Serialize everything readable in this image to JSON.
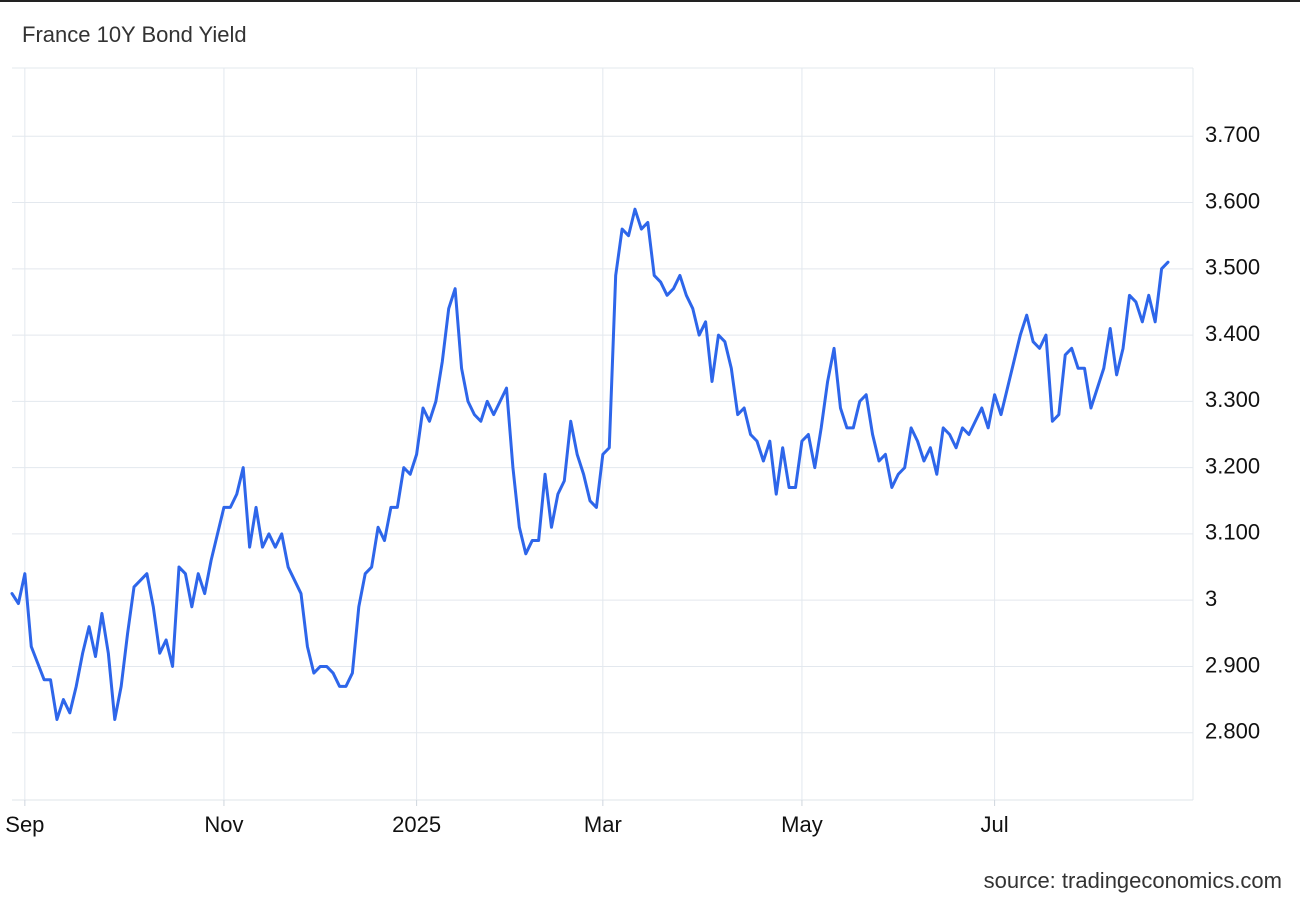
{
  "chart_data": {
    "type": "line",
    "title": "France 10Y Bond Yield",
    "source": "source: tradingeconomics.com",
    "color": "#2e66ea",
    "grid": true,
    "ylim": [
      2.7,
      3.8
    ],
    "yticks": [
      {
        "value": 2.8,
        "label": "2.800"
      },
      {
        "value": 2.9,
        "label": "2.900"
      },
      3,
      {
        "value": 3.1,
        "label": "3.100"
      },
      {
        "value": 3.2,
        "label": "3.200"
      },
      {
        "value": 3.3,
        "label": "3.300"
      },
      {
        "value": 3.4,
        "label": "3.400"
      },
      {
        "value": 3.5,
        "label": "3.500"
      },
      {
        "value": 3.6,
        "label": "3.600"
      },
      {
        "value": 3.7,
        "label": "3.700"
      }
    ],
    "categories": [
      null,
      null,
      "Sep",
      null,
      null,
      null,
      null,
      null,
      null,
      null,
      null,
      null,
      null,
      null,
      null,
      null,
      null,
      null,
      null,
      null,
      null,
      null,
      null,
      null,
      null,
      null,
      null,
      null,
      null,
      null,
      null,
      null,
      null,
      "Nov",
      null,
      null,
      null,
      null,
      null,
      null,
      null,
      null,
      null,
      null,
      null,
      null,
      null,
      null,
      null,
      null,
      null,
      null,
      null,
      null,
      null,
      null,
      null,
      null,
      null,
      null,
      null,
      null,
      null,
      "2025",
      null,
      null,
      null,
      null,
      null,
      null,
      null,
      null,
      null,
      null,
      null,
      null,
      null,
      null,
      null,
      null,
      null,
      null,
      null,
      null,
      null,
      null,
      null,
      null,
      null,
      null,
      null,
      null,
      "Mar",
      null,
      null,
      null,
      null,
      null,
      null,
      null,
      null,
      null,
      null,
      null,
      null,
      null,
      null,
      null,
      null,
      null,
      null,
      null,
      null,
      null,
      null,
      null,
      null,
      null,
      null,
      null,
      null,
      null,
      null,
      "May",
      null,
      null,
      null,
      null,
      null,
      null,
      null,
      null,
      null,
      null,
      null,
      null,
      null,
      null,
      null,
      null,
      null,
      null,
      null,
      null,
      null,
      null,
      null,
      null,
      null,
      null,
      null,
      null,
      null,
      "Jul",
      null,
      null,
      null,
      null,
      null,
      null,
      null,
      null,
      null,
      null,
      null,
      null,
      null,
      null,
      null,
      null,
      null,
      null,
      null,
      null,
      null,
      null,
      null,
      null,
      null,
      null,
      null
    ],
    "values": [
      3.01,
      2.995,
      3.04,
      2.93,
      2.905,
      2.88,
      2.88,
      2.82,
      2.85,
      2.83,
      2.87,
      2.92,
      2.96,
      2.915,
      2.98,
      2.92,
      2.82,
      2.87,
      2.95,
      3.02,
      3.03,
      3.04,
      2.99,
      2.92,
      2.94,
      2.9,
      3.05,
      3.04,
      2.99,
      3.04,
      3.01,
      3.06,
      3.1,
      3.14,
      3.14,
      3.16,
      3.2,
      3.08,
      3.14,
      3.08,
      3.1,
      3.08,
      3.1,
      3.05,
      3.03,
      3.01,
      2.93,
      2.89,
      2.9,
      2.9,
      2.89,
      2.87,
      2.87,
      2.89,
      2.99,
      3.04,
      3.05,
      3.11,
      3.09,
      3.14,
      3.14,
      3.2,
      3.19,
      3.22,
      3.29,
      3.27,
      3.3,
      3.36,
      3.44,
      3.47,
      3.35,
      3.3,
      3.28,
      3.27,
      3.3,
      3.28,
      3.3,
      3.32,
      3.2,
      3.11,
      3.07,
      3.09,
      3.09,
      3.19,
      3.11,
      3.16,
      3.18,
      3.27,
      3.22,
      3.19,
      3.15,
      3.14,
      3.22,
      3.23,
      3.49,
      3.56,
      3.55,
      3.59,
      3.56,
      3.57,
      3.49,
      3.48,
      3.46,
      3.47,
      3.49,
      3.46,
      3.44,
      3.4,
      3.42,
      3.33,
      3.4,
      3.39,
      3.35,
      3.28,
      3.29,
      3.25,
      3.24,
      3.21,
      3.24,
      3.16,
      3.23,
      3.17,
      3.17,
      3.24,
      3.25,
      3.2,
      3.26,
      3.33,
      3.38,
      3.29,
      3.26,
      3.26,
      3.3,
      3.31,
      3.25,
      3.21,
      3.22,
      3.17,
      3.19,
      3.2,
      3.26,
      3.24,
      3.21,
      3.23,
      3.19,
      3.26,
      3.25,
      3.23,
      3.26,
      3.25,
      3.27,
      3.29,
      3.26,
      3.31,
      3.28,
      3.32,
      3.36,
      3.4,
      3.43,
      3.39,
      3.38,
      3.4,
      3.27,
      3.28,
      3.37,
      3.38,
      3.35,
      3.35,
      3.29,
      3.32,
      3.35,
      3.41,
      3.34,
      3.38,
      3.46,
      3.45,
      3.42,
      3.46,
      3.42,
      3.5,
      3.51
    ]
  }
}
